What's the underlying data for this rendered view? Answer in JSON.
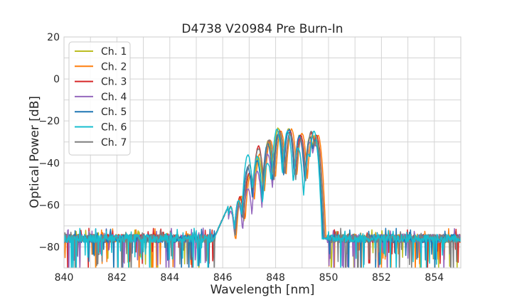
{
  "chart_data": {
    "type": "line",
    "title": "D4738 V20984 Pre Burn-In",
    "xlabel": "Wavelength [nm]",
    "ylabel": "Optical Power [dB]",
    "xlim": [
      840,
      855
    ],
    "ylim": [
      -90,
      20
    ],
    "xticks": [
      840,
      842,
      844,
      846,
      848,
      850,
      852,
      854
    ],
    "yticks": [
      20,
      0,
      -20,
      -40,
      -60,
      -80
    ],
    "grid": true,
    "legend_position": "top-left",
    "noise_floor_db": -76,
    "series": [
      {
        "name": "Ch. 1",
        "color": "#bcbd22",
        "peaks": [
          [
            846.3,
            -61
          ],
          [
            846.65,
            -57
          ],
          [
            847.0,
            -46
          ],
          [
            847.35,
            -37
          ],
          [
            847.72,
            -29.5
          ],
          [
            848.1,
            -23.5
          ],
          [
            848.5,
            -23.5
          ],
          [
            848.9,
            -27
          ],
          [
            849.3,
            -27.5
          ],
          [
            849.5,
            -27
          ]
        ]
      },
      {
        "name": "Ch. 2",
        "color": "#ff7f0e",
        "peaks": [
          [
            846.3,
            -61
          ],
          [
            846.7,
            -56
          ],
          [
            847.05,
            -46
          ],
          [
            847.4,
            -36
          ],
          [
            847.8,
            -29
          ],
          [
            848.2,
            -25
          ],
          [
            848.6,
            -24
          ],
          [
            849.0,
            -26
          ],
          [
            849.4,
            -26.5
          ],
          [
            849.6,
            -27
          ]
        ]
      },
      {
        "name": "Ch. 3",
        "color": "#d62728",
        "peaks": [
          [
            846.3,
            -61
          ],
          [
            846.65,
            -56
          ],
          [
            847.0,
            -45
          ],
          [
            847.35,
            -32
          ],
          [
            847.75,
            -29
          ],
          [
            848.15,
            -25
          ],
          [
            848.55,
            -25
          ],
          [
            848.95,
            -27
          ],
          [
            849.35,
            -25.5
          ],
          [
            849.55,
            -27
          ]
        ]
      },
      {
        "name": "Ch. 4",
        "color": "#9467bd",
        "peaks": [
          [
            846.3,
            -63
          ],
          [
            846.6,
            -60
          ],
          [
            846.95,
            -52
          ],
          [
            847.3,
            -44
          ],
          [
            847.7,
            -36
          ],
          [
            848.1,
            -26
          ],
          [
            848.5,
            -24
          ],
          [
            848.9,
            -28
          ],
          [
            849.3,
            -30
          ],
          [
            849.5,
            -31
          ]
        ]
      },
      {
        "name": "Ch. 5",
        "color": "#1f77b4",
        "peaks": [
          [
            846.3,
            -61
          ],
          [
            846.6,
            -58
          ],
          [
            846.95,
            -42
          ],
          [
            847.3,
            -39
          ],
          [
            847.7,
            -31
          ],
          [
            848.1,
            -26
          ],
          [
            848.5,
            -24
          ],
          [
            848.9,
            -27
          ],
          [
            849.3,
            -28
          ],
          [
            849.5,
            -29
          ]
        ]
      },
      {
        "name": "Ch. 6",
        "color": "#17becf",
        "peaks": [
          [
            846.3,
            -61
          ],
          [
            846.6,
            -58
          ],
          [
            846.95,
            -36
          ],
          [
            847.3,
            -37
          ],
          [
            847.7,
            -40
          ],
          [
            848.05,
            -24
          ],
          [
            848.45,
            -25
          ],
          [
            848.85,
            -33
          ],
          [
            849.25,
            -36
          ],
          [
            849.45,
            -25
          ]
        ]
      },
      {
        "name": "Ch. 7",
        "color": "#7f7f7f",
        "peaks": [
          [
            846.3,
            -61
          ],
          [
            846.65,
            -59
          ],
          [
            847.0,
            -41
          ],
          [
            847.35,
            -33
          ],
          [
            847.75,
            -29
          ],
          [
            848.15,
            -25
          ],
          [
            848.55,
            -26
          ],
          [
            848.95,
            -29
          ],
          [
            849.35,
            -25
          ],
          [
            849.55,
            -29
          ]
        ]
      }
    ]
  }
}
